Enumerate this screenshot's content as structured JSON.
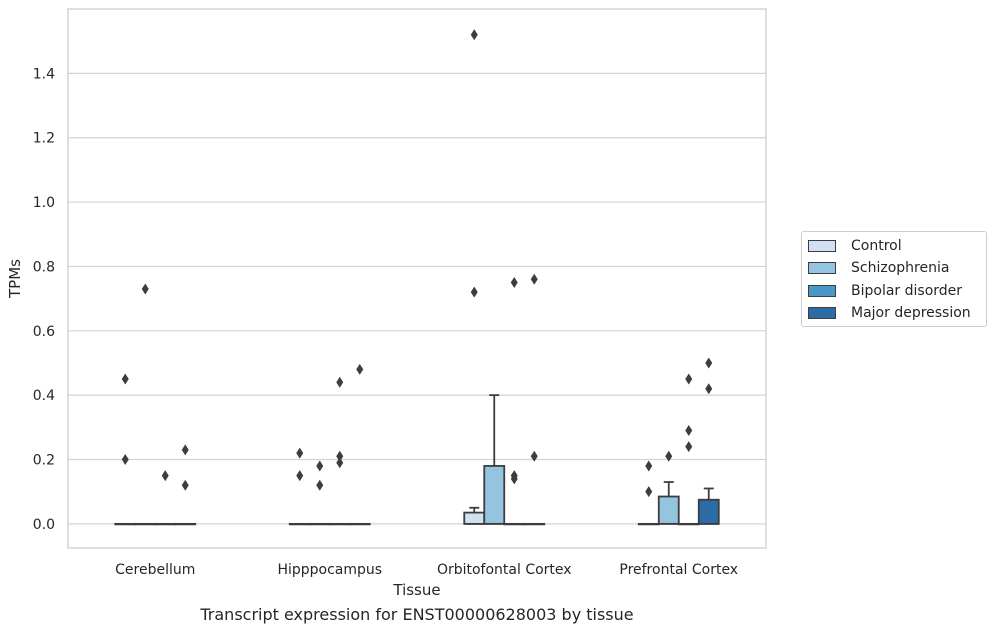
{
  "chart_data": {
    "type": "box",
    "title": "",
    "caption": "Transcript expression for ENST00000628003 by tissue",
    "xlabel": "Tissue",
    "ylabel": "TPMs",
    "ylim": [
      -0.075,
      1.6
    ],
    "yticks": [
      "0.0",
      "0.2",
      "0.4",
      "0.6",
      "0.8",
      "1.0",
      "1.2",
      "1.4"
    ],
    "ytick_values": [
      0.0,
      0.2,
      0.4,
      0.6,
      0.8,
      1.0,
      1.2,
      1.4
    ],
    "categories": [
      "Cerebellum",
      "Hipppocampus",
      "Orbitofontal Cortex",
      "Prefrontal Cortex"
    ],
    "grid": "horizontal",
    "legend_position": "center-right outside",
    "series": [
      {
        "name": "Control",
        "color": "#d0e1f1",
        "boxes": [
          {
            "q1": 0,
            "median": 0,
            "q3": 0,
            "whisker_low": 0,
            "whisker_high": 0,
            "outliers": [
              0.45,
              0.2
            ]
          },
          {
            "q1": 0,
            "median": 0,
            "q3": 0,
            "whisker_low": 0,
            "whisker_high": 0,
            "outliers": [
              0.22,
              0.15
            ]
          },
          {
            "q1": 0,
            "median": 0,
            "q3": 0.035,
            "whisker_low": 0,
            "whisker_high": 0.05,
            "outliers": [
              1.52,
              0.72
            ]
          },
          {
            "q1": 0,
            "median": 0,
            "q3": 0,
            "whisker_low": 0,
            "whisker_high": 0,
            "outliers": [
              0.18,
              0.1
            ]
          }
        ]
      },
      {
        "name": "Schizophrenia",
        "color": "#94c4df",
        "boxes": [
          {
            "q1": 0,
            "median": 0,
            "q3": 0,
            "whisker_low": 0,
            "whisker_high": 0,
            "outliers": [
              0.73
            ]
          },
          {
            "q1": 0,
            "median": 0,
            "q3": 0,
            "whisker_low": 0,
            "whisker_high": 0,
            "outliers": [
              0.18,
              0.12
            ]
          },
          {
            "q1": 0,
            "median": 0,
            "q3": 0.18,
            "whisker_low": 0,
            "whisker_high": 0.4,
            "outliers": []
          },
          {
            "q1": 0,
            "median": 0,
            "q3": 0.085,
            "whisker_low": 0,
            "whisker_high": 0.13,
            "outliers": [
              0.21
            ]
          }
        ]
      },
      {
        "name": "Bipolar disorder",
        "color": "#4b97c9",
        "boxes": [
          {
            "q1": 0,
            "median": 0,
            "q3": 0,
            "whisker_low": 0,
            "whisker_high": 0,
            "outliers": [
              0.15
            ]
          },
          {
            "q1": 0,
            "median": 0,
            "q3": 0,
            "whisker_low": 0,
            "whisker_high": 0,
            "outliers": [
              0.44,
              0.21,
              0.19
            ]
          },
          {
            "q1": 0,
            "median": 0,
            "q3": 0,
            "whisker_low": 0,
            "whisker_high": 0,
            "outliers": [
              0.75,
              0.15,
              0.14
            ]
          },
          {
            "q1": 0,
            "median": 0,
            "q3": 0,
            "whisker_low": 0,
            "whisker_high": 0,
            "outliers": [
              0.45,
              0.29,
              0.24
            ]
          }
        ]
      },
      {
        "name": "Major depression",
        "color": "#2b6ba6",
        "boxes": [
          {
            "q1": 0,
            "median": 0,
            "q3": 0,
            "whisker_low": 0,
            "whisker_high": 0,
            "outliers": [
              0.23,
              0.12
            ]
          },
          {
            "q1": 0,
            "median": 0,
            "q3": 0,
            "whisker_low": 0,
            "whisker_high": 0,
            "outliers": [
              0.48
            ]
          },
          {
            "q1": 0,
            "median": 0,
            "q3": 0,
            "whisker_low": 0,
            "whisker_high": 0,
            "outliers": [
              0.76,
              0.21
            ]
          },
          {
            "q1": 0,
            "median": 0,
            "q3": 0.075,
            "whisker_low": 0,
            "whisker_high": 0.11,
            "outliers": [
              0.5,
              0.42
            ]
          }
        ]
      }
    ]
  }
}
